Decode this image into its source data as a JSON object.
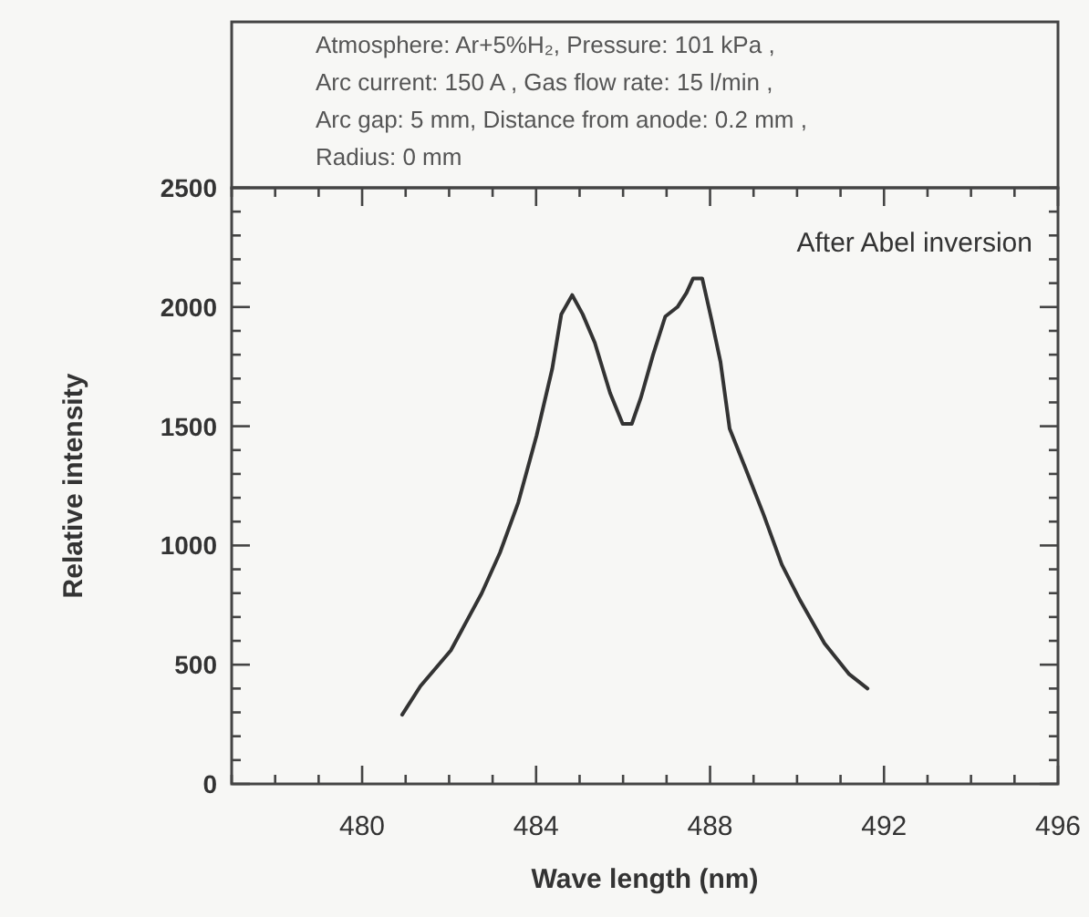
{
  "chart_data": {
    "type": "line",
    "xlabel": "Wave length (nm)",
    "ylabel": "Relative intensity",
    "annotations": [
      "Atmosphere: Ar+5%H₂, Pressure: 101 kPa ,",
      "Arc current: 150 A , Gas flow rate: 15 l/min ,",
      "Arc gap: 5 mm, Distance from anode: 0.2 mm ,",
      "Radius: 0 mm",
      "After Abel inversion"
    ],
    "xlim": [
      477,
      496
    ],
    "xticks": [
      {
        "value": 477,
        "label": null
      },
      {
        "value": 478,
        "label": null
      },
      {
        "value": 479,
        "label": null
      },
      480,
      {
        "value": 481,
        "label": null
      },
      {
        "value": 482,
        "label": null
      },
      {
        "value": 483,
        "label": null
      },
      484,
      {
        "value": 485,
        "label": null
      },
      {
        "value": 486,
        "label": null
      },
      {
        "value": 487,
        "label": null
      },
      488,
      {
        "value": 489,
        "label": null
      },
      {
        "value": 490,
        "label": null
      },
      {
        "value": 491,
        "label": null
      },
      492,
      {
        "value": 493,
        "label": null
      },
      {
        "value": 494,
        "label": null
      },
      {
        "value": 495,
        "label": null
      },
      496
    ],
    "ylim": [
      0,
      2500
    ],
    "yticks": [
      0,
      {
        "value": 100,
        "label": null
      },
      {
        "value": 200,
        "label": null
      },
      {
        "value": 300,
        "label": null
      },
      {
        "value": 400,
        "label": null
      },
      500,
      {
        "value": 600,
        "label": null
      },
      {
        "value": 700,
        "label": null
      },
      {
        "value": 800,
        "label": null
      },
      {
        "value": 900,
        "label": null
      },
      1000,
      {
        "value": 1100,
        "label": null
      },
      {
        "value": 1200,
        "label": null
      },
      {
        "value": 1300,
        "label": null
      },
      {
        "value": 1400,
        "label": null
      },
      1500,
      {
        "value": 1600,
        "label": null
      },
      {
        "value": 1700,
        "label": null
      },
      {
        "value": 1800,
        "label": null
      },
      {
        "value": 1900,
        "label": null
      },
      2000,
      {
        "value": 2100,
        "label": null
      },
      {
        "value": 2200,
        "label": null
      },
      {
        "value": 2300,
        "label": null
      },
      {
        "value": 2400,
        "label": null
      },
      2500
    ],
    "grid": false,
    "marker": "none",
    "line_style": "solid",
    "series": [
      {
        "color": "#333333",
        "x": [
          480.92,
          481.34,
          482.04,
          482.75,
          483.17,
          483.59,
          484.01,
          484.37,
          484.58,
          484.83,
          485.07,
          485.35,
          485.7,
          485.99,
          486.2,
          486.41,
          486.69,
          486.97,
          487.25,
          487.46,
          487.61,
          487.82,
          488.03,
          488.24,
          488.45,
          488.8,
          489.23,
          489.65,
          490.07,
          490.63,
          491.2,
          491.62
        ],
        "values": [
          290,
          410,
          560,
          800,
          970,
          1180,
          1460,
          1740,
          1970,
          2050,
          1970,
          1850,
          1640,
          1510,
          1510,
          1620,
          1800,
          1960,
          2000,
          2060,
          2120,
          2120,
          1950,
          1770,
          1490,
          1330,
          1130,
          920,
          770,
          590,
          460,
          400
        ]
      }
    ]
  }
}
